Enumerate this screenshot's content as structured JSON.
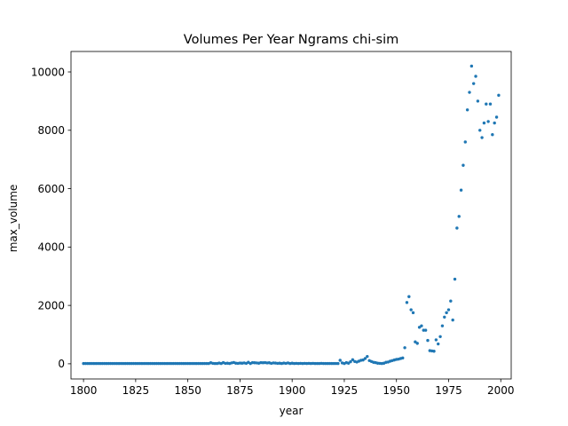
{
  "chart_data": {
    "type": "scatter",
    "title": "Volumes Per Year Ngrams chi-sim",
    "xlabel": "year",
    "ylabel": "max_volume",
    "xlim": [
      1794,
      2005
    ],
    "ylim": [
      -520,
      10700
    ],
    "xticks": [
      1800,
      1825,
      1850,
      1875,
      1900,
      1925,
      1950,
      1975,
      2000
    ],
    "yticks": [
      0,
      2000,
      4000,
      6000,
      8000,
      10000
    ],
    "grid": false,
    "legend": "none",
    "marker_color": "#1f77b4",
    "series": [
      {
        "points": [
          [
            1800,
            10
          ],
          [
            1801,
            10
          ],
          [
            1802,
            10
          ],
          [
            1803,
            10
          ],
          [
            1804,
            10
          ],
          [
            1805,
            10
          ],
          [
            1806,
            10
          ],
          [
            1807,
            10
          ],
          [
            1808,
            10
          ],
          [
            1809,
            10
          ],
          [
            1810,
            10
          ],
          [
            1811,
            10
          ],
          [
            1812,
            10
          ],
          [
            1813,
            10
          ],
          [
            1814,
            10
          ],
          [
            1815,
            10
          ],
          [
            1816,
            10
          ],
          [
            1817,
            10
          ],
          [
            1818,
            10
          ],
          [
            1819,
            10
          ],
          [
            1820,
            10
          ],
          [
            1821,
            10
          ],
          [
            1822,
            10
          ],
          [
            1823,
            10
          ],
          [
            1824,
            10
          ],
          [
            1825,
            10
          ],
          [
            1826,
            10
          ],
          [
            1827,
            10
          ],
          [
            1828,
            10
          ],
          [
            1829,
            10
          ],
          [
            1830,
            10
          ],
          [
            1831,
            10
          ],
          [
            1832,
            10
          ],
          [
            1833,
            10
          ],
          [
            1834,
            10
          ],
          [
            1835,
            10
          ],
          [
            1836,
            10
          ],
          [
            1837,
            10
          ],
          [
            1838,
            10
          ],
          [
            1839,
            10
          ],
          [
            1840,
            10
          ],
          [
            1841,
            10
          ],
          [
            1842,
            10
          ],
          [
            1843,
            10
          ],
          [
            1844,
            10
          ],
          [
            1845,
            10
          ],
          [
            1846,
            10
          ],
          [
            1847,
            10
          ],
          [
            1848,
            10
          ],
          [
            1849,
            10
          ],
          [
            1850,
            10
          ],
          [
            1851,
            10
          ],
          [
            1852,
            10
          ],
          [
            1853,
            10
          ],
          [
            1854,
            10
          ],
          [
            1855,
            10
          ],
          [
            1856,
            10
          ],
          [
            1857,
            10
          ],
          [
            1858,
            10
          ],
          [
            1859,
            10
          ],
          [
            1860,
            10
          ],
          [
            1861,
            35
          ],
          [
            1862,
            15
          ],
          [
            1863,
            10
          ],
          [
            1864,
            10
          ],
          [
            1865,
            25
          ],
          [
            1866,
            10
          ],
          [
            1867,
            40
          ],
          [
            1868,
            15
          ],
          [
            1869,
            20
          ],
          [
            1870,
            10
          ],
          [
            1871,
            30
          ],
          [
            1872,
            45
          ],
          [
            1873,
            20
          ],
          [
            1874,
            15
          ],
          [
            1875,
            25
          ],
          [
            1876,
            20
          ],
          [
            1877,
            30
          ],
          [
            1878,
            15
          ],
          [
            1879,
            50
          ],
          [
            1880,
            10
          ],
          [
            1881,
            40
          ],
          [
            1882,
            35
          ],
          [
            1883,
            30
          ],
          [
            1884,
            20
          ],
          [
            1885,
            40
          ],
          [
            1886,
            35
          ],
          [
            1887,
            40
          ],
          [
            1888,
            30
          ],
          [
            1889,
            35
          ],
          [
            1890,
            15
          ],
          [
            1891,
            30
          ],
          [
            1892,
            25
          ],
          [
            1893,
            15
          ],
          [
            1894,
            20
          ],
          [
            1895,
            10
          ],
          [
            1896,
            25
          ],
          [
            1897,
            15
          ],
          [
            1898,
            30
          ],
          [
            1899,
            10
          ],
          [
            1900,
            20
          ],
          [
            1901,
            10
          ],
          [
            1902,
            15
          ],
          [
            1903,
            10
          ],
          [
            1904,
            15
          ],
          [
            1905,
            10
          ],
          [
            1906,
            15
          ],
          [
            1907,
            10
          ],
          [
            1908,
            15
          ],
          [
            1909,
            10
          ],
          [
            1910,
            15
          ],
          [
            1911,
            10
          ],
          [
            1912,
            10
          ],
          [
            1913,
            10
          ],
          [
            1914,
            15
          ],
          [
            1915,
            10
          ],
          [
            1916,
            10
          ],
          [
            1917,
            10
          ],
          [
            1918,
            10
          ],
          [
            1919,
            10
          ],
          [
            1920,
            10
          ],
          [
            1921,
            10
          ],
          [
            1922,
            10
          ],
          [
            1923,
            120
          ],
          [
            1924,
            30
          ],
          [
            1925,
            10
          ],
          [
            1926,
            40
          ],
          [
            1927,
            20
          ],
          [
            1928,
            70
          ],
          [
            1929,
            140
          ],
          [
            1930,
            80
          ],
          [
            1931,
            60
          ],
          [
            1932,
            90
          ],
          [
            1933,
            120
          ],
          [
            1934,
            130
          ],
          [
            1935,
            180
          ],
          [
            1936,
            250
          ],
          [
            1937,
            110
          ],
          [
            1938,
            80
          ],
          [
            1939,
            50
          ],
          [
            1940,
            40
          ],
          [
            1941,
            20
          ],
          [
            1942,
            15
          ],
          [
            1943,
            10
          ],
          [
            1944,
            20
          ],
          [
            1945,
            50
          ],
          [
            1946,
            60
          ],
          [
            1947,
            90
          ],
          [
            1948,
            110
          ],
          [
            1949,
            130
          ],
          [
            1950,
            150
          ],
          [
            1951,
            160
          ],
          [
            1952,
            180
          ],
          [
            1953,
            200
          ],
          [
            1954,
            550
          ],
          [
            1955,
            2100
          ],
          [
            1956,
            2300
          ],
          [
            1957,
            1850
          ],
          [
            1958,
            1750
          ],
          [
            1959,
            750
          ],
          [
            1960,
            700
          ],
          [
            1961,
            1250
          ],
          [
            1962,
            1300
          ],
          [
            1963,
            1150
          ],
          [
            1964,
            1150
          ],
          [
            1965,
            800
          ],
          [
            1966,
            450
          ],
          [
            1967,
            440
          ],
          [
            1968,
            430
          ],
          [
            1969,
            820
          ],
          [
            1970,
            680
          ],
          [
            1971,
            930
          ],
          [
            1972,
            1300
          ],
          [
            1973,
            1600
          ],
          [
            1974,
            1750
          ],
          [
            1975,
            1850
          ],
          [
            1976,
            2150
          ],
          [
            1977,
            1500
          ],
          [
            1978,
            2900
          ],
          [
            1979,
            4650
          ],
          [
            1980,
            5050
          ],
          [
            1981,
            5950
          ],
          [
            1982,
            6800
          ],
          [
            1983,
            7600
          ],
          [
            1984,
            8700
          ],
          [
            1985,
            9300
          ],
          [
            1986,
            10200
          ],
          [
            1987,
            9600
          ],
          [
            1988,
            9850
          ],
          [
            1989,
            9000
          ],
          [
            1990,
            8000
          ],
          [
            1991,
            7750
          ],
          [
            1992,
            8250
          ],
          [
            1993,
            8900
          ],
          [
            1994,
            8300
          ],
          [
            1995,
            8900
          ],
          [
            1996,
            7850
          ],
          [
            1997,
            8250
          ],
          [
            1998,
            8450
          ],
          [
            1999,
            9200
          ]
        ]
      }
    ]
  }
}
